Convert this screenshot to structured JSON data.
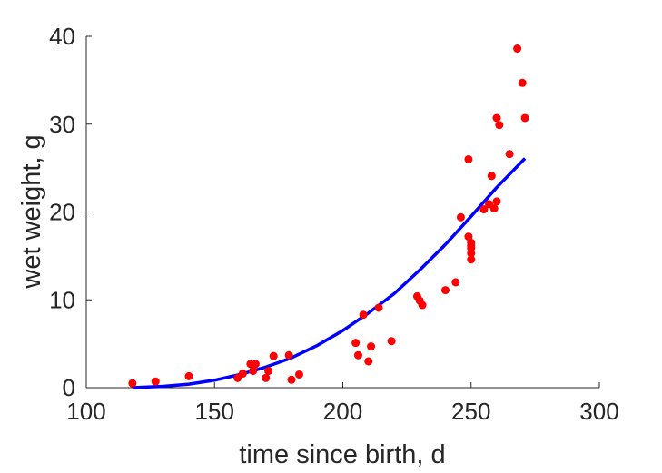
{
  "chart_data": {
    "type": "scatter",
    "xlabel": "time since birth, d",
    "ylabel": "wet weight, g",
    "xlim": [
      100,
      300
    ],
    "ylim": [
      0,
      40
    ],
    "xticks": [
      "100",
      "150",
      "200",
      "250",
      "300"
    ],
    "yticks": [
      "0",
      "10",
      "20",
      "30",
      "40"
    ],
    "grid": false,
    "legend": "none",
    "series": [
      {
        "kind": "points",
        "color": "#ff0000",
        "x": [
          118,
          127,
          140,
          159,
          161,
          164,
          165,
          166,
          170,
          171,
          173,
          179,
          180,
          183,
          205,
          206,
          208,
          210,
          211,
          214,
          219,
          229,
          230,
          231,
          240,
          244,
          246,
          249,
          249,
          250,
          250,
          250,
          250,
          250,
          255,
          257,
          258,
          259,
          260,
          260,
          261,
          265,
          268,
          270,
          271
        ],
        "y": [
          0.5,
          0.7,
          1.3,
          1.1,
          1.6,
          2.7,
          1.9,
          2.7,
          1.1,
          1.9,
          3.6,
          3.7,
          0.9,
          1.5,
          5.1,
          3.7,
          8.3,
          3.0,
          4.7,
          9.1,
          5.3,
          10.4,
          9.9,
          9.4,
          11.1,
          12.0,
          19.4,
          26.0,
          17.2,
          16.5,
          15.9,
          15.3,
          14.6,
          16.2,
          20.3,
          20.9,
          24.1,
          20.4,
          21.2,
          30.7,
          29.9,
          26.6,
          38.6,
          34.7,
          30.7
        ]
      },
      {
        "kind": "line",
        "color": "#0000ff",
        "x": [
          118,
          130,
          140,
          150,
          160,
          170,
          180,
          190,
          200,
          210,
          220,
          230,
          240,
          250,
          260,
          271
        ],
        "y": [
          0.0,
          0.15,
          0.4,
          0.85,
          1.5,
          2.35,
          3.4,
          4.8,
          6.5,
          8.5,
          10.7,
          13.4,
          16.3,
          19.5,
          22.8,
          26.1
        ]
      }
    ]
  }
}
